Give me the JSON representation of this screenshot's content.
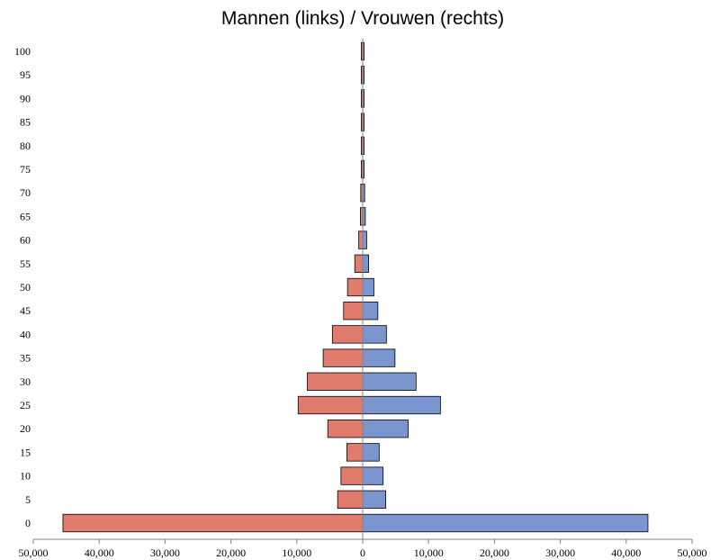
{
  "chart_data": {
    "type": "bar",
    "orientation": "horizontal",
    "subtype": "population-pyramid",
    "title": "Mannen (links) / Vrouwen (rechts)",
    "categories": [
      "0",
      "5",
      "10",
      "15",
      "20",
      "25",
      "30",
      "35",
      "40",
      "45",
      "50",
      "55",
      "60",
      "65",
      "70",
      "75",
      "80",
      "85",
      "90",
      "95",
      "100"
    ],
    "series": [
      {
        "values": [
          45500,
          3800,
          3300,
          2400,
          5300,
          9800,
          8400,
          6000,
          4600,
          2900,
          2300,
          1200,
          600,
          350,
          300,
          150,
          100,
          80,
          50,
          30,
          10
        ],
        "color": "#e07c6e"
      },
      {
        "values": [
          43300,
          3500,
          3100,
          2500,
          6900,
          11800,
          8100,
          4900,
          3600,
          2300,
          1700,
          900,
          600,
          400,
          300,
          150,
          100,
          80,
          50,
          30,
          10
        ],
        "color": "#7b96ce"
      }
    ],
    "x_ticks": [
      "50,000",
      "40,000",
      "30,000",
      "20,000",
      "10,000",
      "0",
      "10,000",
      "20,000",
      "30,000",
      "40,000",
      "50,000"
    ],
    "xlim": [
      -50000,
      50000
    ],
    "grid": false,
    "legend": "none"
  }
}
